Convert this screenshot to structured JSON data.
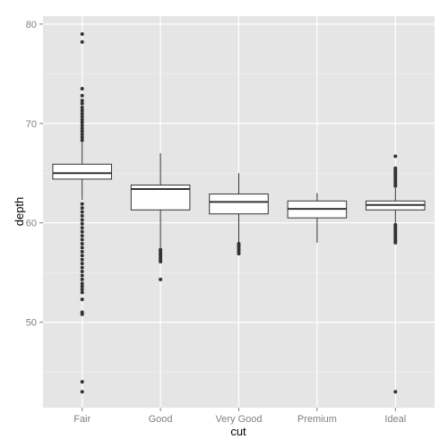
{
  "chart_data": {
    "type": "boxplot",
    "xlabel": "cut",
    "ylabel": "depth",
    "ylim": [
      41.4,
      80.8
    ],
    "yticks": [
      50,
      60,
      70,
      80
    ],
    "categories": [
      "Fair",
      "Good",
      "Very Good",
      "Premium",
      "Ideal"
    ],
    "grid": true,
    "boxes": [
      {
        "category": "Fair",
        "whisker_low": 62.3,
        "q1": 64.4,
        "median": 65.0,
        "q3": 65.9,
        "whisker_high": 68.1,
        "outliers_high": [
          68.3,
          68.6,
          68.9,
          69.2,
          69.5,
          69.8,
          70.1,
          70.4,
          70.7,
          71.0,
          71.3,
          71.6,
          72.0,
          72.3,
          72.8,
          73.5,
          78.2,
          79.0
        ],
        "outliers_low": [
          61.9,
          61.5,
          61.1,
          60.7,
          60.3,
          59.9,
          59.5,
          59.1,
          58.7,
          58.3,
          57.9,
          57.5,
          57.1,
          56.7,
          56.3,
          55.9,
          55.5,
          55.1,
          54.7,
          54.3,
          53.9,
          53.6,
          53.3,
          53.0,
          52.3,
          51.0,
          50.8,
          44.0,
          43.0
        ]
      },
      {
        "category": "Good",
        "whisker_low": 57.5,
        "q1": 61.3,
        "median": 63.4,
        "q3": 63.8,
        "whisker_high": 67.0,
        "outliers_high": [],
        "outliers_low": [
          57.3,
          57.1,
          56.9,
          56.7,
          56.5,
          56.3,
          56.1,
          54.3
        ]
      },
      {
        "category": "Very Good",
        "whisker_low": 58.0,
        "q1": 60.9,
        "median": 62.1,
        "q3": 62.9,
        "whisker_high": 65.0,
        "outliers_high": [],
        "outliers_low": [
          57.9,
          57.7,
          57.5,
          57.3,
          57.1,
          56.9
        ]
      },
      {
        "category": "Premium",
        "whisker_low": 58.0,
        "q1": 60.5,
        "median": 61.4,
        "q3": 62.2,
        "whisker_high": 63.0,
        "outliers_high": [],
        "outliers_low": []
      },
      {
        "category": "Ideal",
        "whisker_low": 60.0,
        "q1": 61.3,
        "median": 61.8,
        "q3": 62.2,
        "whisker_high": 63.5,
        "outliers_high": [
          63.7,
          63.9,
          64.1,
          64.3,
          64.5,
          64.7,
          64.9,
          65.1,
          65.3,
          65.5,
          66.7
        ],
        "outliers_low": [
          59.8,
          59.6,
          59.4,
          59.2,
          59.0,
          58.8,
          58.6,
          58.4,
          58.2,
          58.0,
          43.0
        ]
      }
    ]
  }
}
